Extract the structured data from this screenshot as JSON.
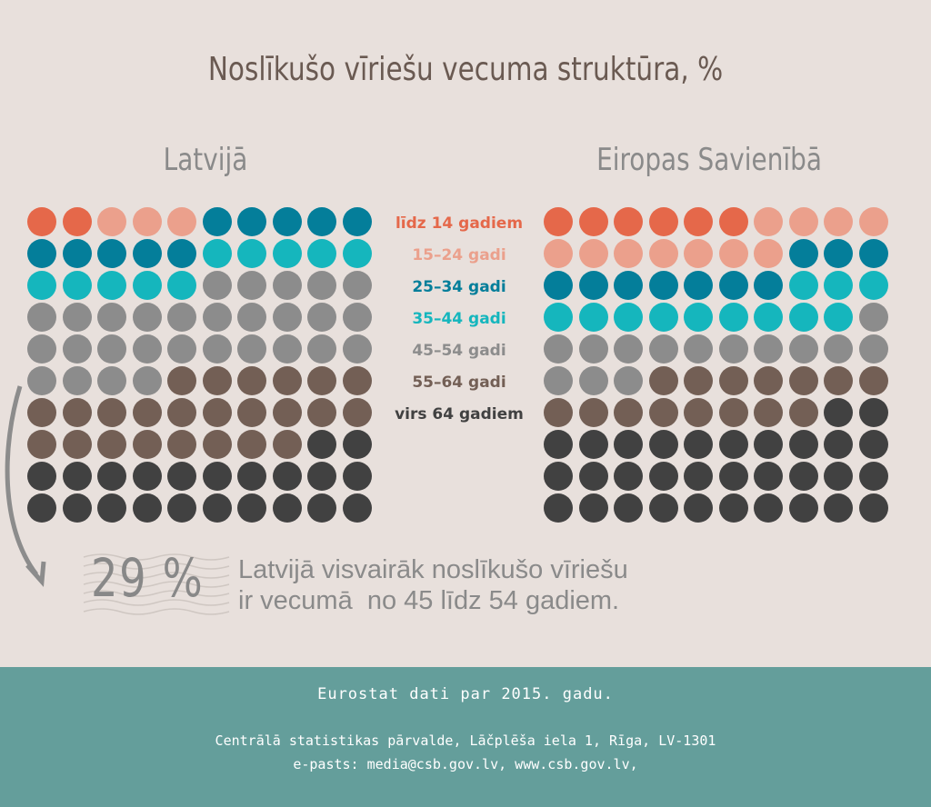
{
  "title": "Noslīkušo vīriešu vecuma struktūra, %",
  "colors": {
    "age_0_14": "#e5684a",
    "age_15_24": "#eba08c",
    "age_25_34": "#047e9a",
    "age_35_44": "#15b6bd",
    "age_45_54": "#8c8c8c",
    "age_55_64": "#735f55",
    "age_65_plus": "#414141"
  },
  "chart_data": [
    {
      "type": "waffle",
      "title": "Latvijā",
      "categories": [
        "līdz 14 gadiem",
        "15–24 gadi",
        "25–34 gadi",
        "35–44 gadi",
        "45–54 gadi",
        "55–64 gadi",
        "virs 64 gadiem"
      ],
      "values": [
        2,
        3,
        10,
        10,
        29,
        24,
        22
      ],
      "grid": {
        "columns": 10,
        "rows": 10
      }
    },
    {
      "type": "waffle",
      "title": "Eiropas Savienībā",
      "categories": [
        "līdz 14 gadiem",
        "15–24 gadi",
        "25–34 gadi",
        "35–44 gadi",
        "45–54 gadi",
        "55–64 gadi",
        "virs 64 gadiem"
      ],
      "values": [
        6,
        11,
        10,
        12,
        14,
        15,
        32
      ],
      "grid": {
        "columns": 10,
        "rows": 10
      }
    }
  ],
  "legend": [
    {
      "label": "līdz 14 gadiem",
      "color": "#e5684a"
    },
    {
      "label": "15–24 gadi",
      "color": "#eba08c"
    },
    {
      "label": "25–34 gadi",
      "color": "#047e9a"
    },
    {
      "label": "35–44 gadi",
      "color": "#15b6bd"
    },
    {
      "label": "45–54 gadi",
      "color": "#8c8c8c"
    },
    {
      "label": "55–64 gadi",
      "color": "#735f55"
    },
    {
      "label": "virs 64 gadiem",
      "color": "#414141"
    }
  ],
  "callout": {
    "value": "29 %",
    "line1": "Latvijā visvairāk noslīkušo vīriešu",
    "line2": "ir vecumā  no 45 līdz 54 gadiem."
  },
  "footer": {
    "source": "Eurostat dati par 2015. gadu.",
    "line2": "Centrālā statistikas pārvalde, Lāčplēša iela 1, Rīga, LV-1301",
    "line3": "e-pasts: media@csb.gov.lv, www.csb.gov.lv,"
  }
}
